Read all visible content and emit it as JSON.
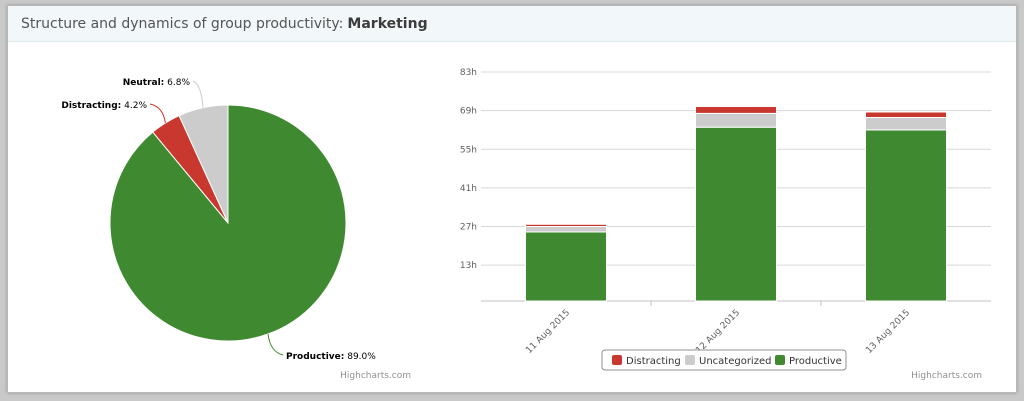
{
  "header": {
    "title_prefix": "Structure and dynamics of group productivity:",
    "group_name": "Marketing"
  },
  "credits": "Highcharts.com",
  "colors": {
    "Distracting": "#c9382e",
    "Uncategorized": "#cccccc",
    "Neutral": "#cccccc",
    "Productive": "#3f8a30"
  },
  "chart_data": [
    {
      "type": "pie",
      "slices": [
        {
          "label": "Productive",
          "value": 89.0
        },
        {
          "label": "Distracting",
          "value": 4.2
        },
        {
          "label": "Neutral",
          "value": 6.8
        }
      ]
    },
    {
      "type": "bar",
      "stacked": true,
      "categories": [
        "11 Aug 2015",
        "12 Aug 2015",
        "13 Aug 2015"
      ],
      "series": [
        {
          "name": "Productive",
          "values": [
            25,
            63,
            62
          ]
        },
        {
          "name": "Uncategorized",
          "values": [
            2,
            5,
            4.5
          ]
        },
        {
          "name": "Distracting",
          "values": [
            0.8,
            2.5,
            2
          ]
        }
      ],
      "y_ticks": [
        "13h",
        "27h",
        "41h",
        "55h",
        "69h",
        "83h"
      ],
      "y_tick_values": [
        13,
        27,
        41,
        55,
        69,
        83
      ],
      "ylim": [
        0,
        83
      ],
      "legend": [
        "Distracting",
        "Uncategorized",
        "Productive"
      ],
      "legend_position": "bottom-center"
    }
  ]
}
